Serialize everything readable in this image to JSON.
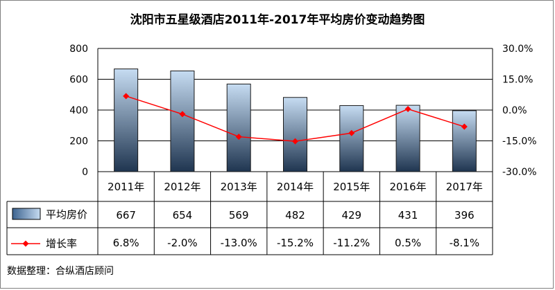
{
  "title": "沈阳市五星级酒店2011年-2017年平均房价变动趋势图",
  "source": "数据整理：合纵酒店顾问",
  "chart_data": {
    "type": "bar",
    "title": "沈阳市五星级酒店2011年-2017年平均房价变动趋势图",
    "categories": [
      "2011年",
      "2012年",
      "2013年",
      "2014年",
      "2015年",
      "2016年",
      "2017年"
    ],
    "series": [
      {
        "name": "平均房价",
        "type": "bar",
        "axis": "left",
        "values": [
          667,
          654,
          569,
          482,
          429,
          431,
          396
        ],
        "labels": [
          "667",
          "654",
          "569",
          "482",
          "429",
          "431",
          "396"
        ]
      },
      {
        "name": "增长率",
        "type": "line",
        "axis": "right",
        "values": [
          6.8,
          -2.0,
          -13.0,
          -15.2,
          -11.2,
          0.5,
          -8.1
        ],
        "labels": [
          "6.8%",
          "-2.0%",
          "-13.0%",
          "-15.2%",
          "-11.2%",
          "0.5%",
          "-8.1%"
        ]
      }
    ],
    "ylim": [
      0,
      800
    ],
    "yticks": [
      "0",
      "200",
      "400",
      "600",
      "800"
    ],
    "y2lim": [
      -30,
      30
    ],
    "y2ticks": [
      "30.0%",
      "15.0%",
      "0.0%",
      "-15.0%",
      "-30.0%"
    ],
    "grid": true,
    "legend": "data-table",
    "colors": {
      "bar_top": "#c6dcf2",
      "bar_bottom": "#1f3550",
      "bar_stroke": "#1a1a1a",
      "line": "#ff0000",
      "grid": "#000000"
    }
  }
}
